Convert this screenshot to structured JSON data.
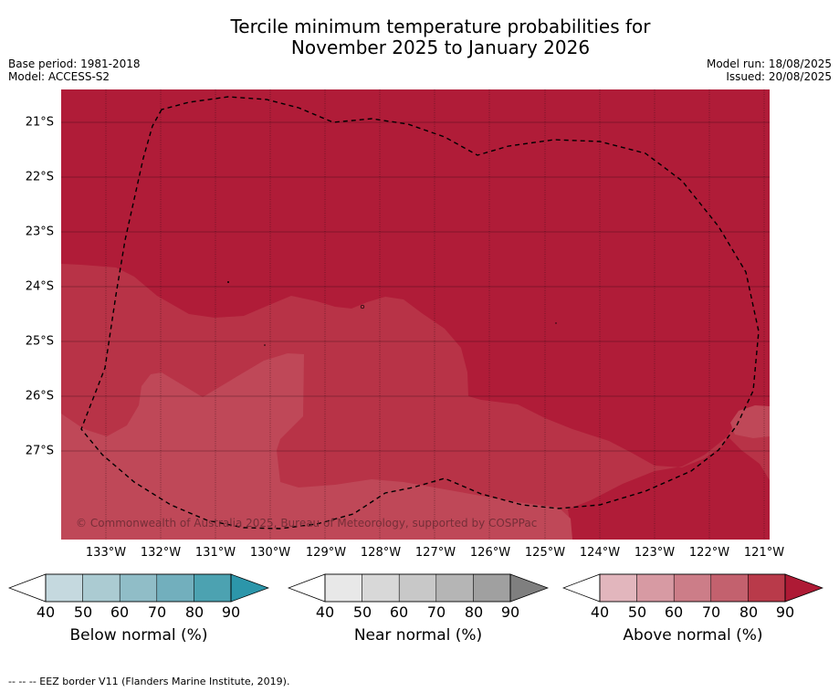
{
  "title_line1": "Tercile minimum temperature probabilities for",
  "title_line2": "November 2025 to January 2026",
  "base_period": "Base period: 1981-2018",
  "model": "Model: ACCESS-S2",
  "model_run": "Model run: 18/08/2025",
  "issued": "Issued: 20/08/2025",
  "lat_labels": [
    "21°S",
    "22°S",
    "23°S",
    "24°S",
    "25°S",
    "26°S",
    "27°S"
  ],
  "lon_labels": [
    "133°W",
    "132°W",
    "131°W",
    "130°W",
    "129°W",
    "128°W",
    "127°W",
    "126°W",
    "125°W",
    "124°W",
    "123°W",
    "122°W",
    "121°W"
  ],
  "copyright": "© Commonwealth of Australia 2025, Bureau of Meteorology, supported by COSPPac",
  "colorbars": [
    {
      "label": "Below normal (%)",
      "ticks": [
        "40",
        "50",
        "60",
        "70",
        "80",
        "90"
      ],
      "colors": [
        "#ffffff",
        "#c5d9df",
        "#abcbd2",
        "#90bdc7",
        "#72afbd",
        "#4ca2b1",
        "#2c96aa"
      ]
    },
    {
      "label": "Near normal (%)",
      "ticks": [
        "40",
        "50",
        "60",
        "70",
        "80",
        "90"
      ],
      "colors": [
        "#ffffff",
        "#e8e8e8",
        "#d8d8d8",
        "#c8c8c8",
        "#b5b5b5",
        "#a0a0a0",
        "#7f7f7f"
      ]
    },
    {
      "label": "Above normal (%)",
      "ticks": [
        "40",
        "50",
        "60",
        "70",
        "80",
        "90"
      ],
      "colors": [
        "#ffffff",
        "#e2b6bd",
        "#d79aa3",
        "#cc7d88",
        "#c3616e",
        "#b93a4a",
        "#ae1a35"
      ]
    }
  ],
  "footer": "--  --  -- EEZ border V11 (Flanders Marine Institute, 2019).",
  "map_colors": {
    "above_90": "#b01c38",
    "above_80": "#b83347",
    "above_70": "#bf4858",
    "border": "#000000"
  }
}
